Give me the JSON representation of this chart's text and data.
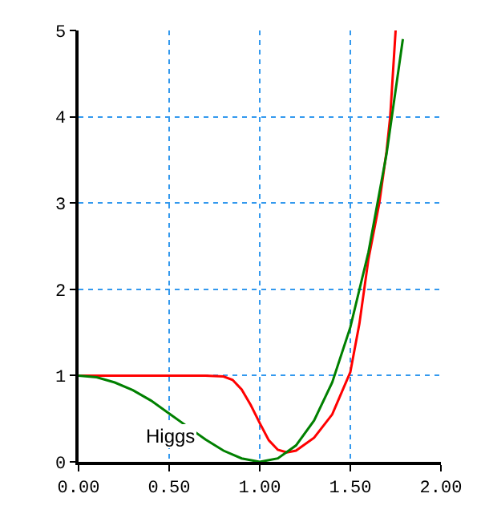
{
  "chart_data": {
    "type": "line",
    "series": [
      {
        "color": "#ff0000",
        "x": [
          0,
          0.3,
          0.6,
          0.7,
          0.8,
          0.85,
          0.9,
          0.95,
          1.0,
          1.05,
          1.1,
          1.15,
          1.2,
          1.3,
          1.4,
          1.5,
          1.55,
          1.6,
          1.66,
          1.7,
          1.72,
          1.75
        ],
        "values": [
          1,
          1,
          1,
          1,
          0.99,
          0.95,
          0.84,
          0.66,
          0.45,
          0.25,
          0.14,
          0.11,
          0.13,
          0.28,
          0.55,
          1.04,
          1.6,
          2.35,
          3.0,
          3.6,
          4.0,
          5.0
        ]
      },
      {
        "color": "#008000",
        "x": [
          0,
          0.1,
          0.2,
          0.3,
          0.4,
          0.5,
          0.6,
          0.7,
          0.8,
          0.9,
          1.0,
          1.1,
          1.2,
          1.3,
          1.4,
          1.5,
          1.6,
          1.7,
          1.79
        ],
        "values": [
          1,
          0.98,
          0.92,
          0.83,
          0.71,
          0.56,
          0.41,
          0.26,
          0.13,
          0.04,
          0,
          0.04,
          0.19,
          0.48,
          0.92,
          1.56,
          2.43,
          3.57,
          4.9
        ]
      }
    ],
    "xlim": [
      0,
      2
    ],
    "xticks": [
      {
        "value": 0,
        "label": "0.00"
      },
      {
        "value": 0.5,
        "label": "0.50"
      },
      {
        "value": 1,
        "label": "1.00"
      },
      {
        "value": 1.5,
        "label": "1.50"
      },
      {
        "value": 2,
        "label": "2.00"
      }
    ],
    "ylim": [
      0,
      5
    ],
    "yticks": [
      0,
      1,
      2,
      3,
      4,
      5
    ],
    "grid": true,
    "line_style": "solid",
    "annotations": [
      "Higgs"
    ]
  }
}
